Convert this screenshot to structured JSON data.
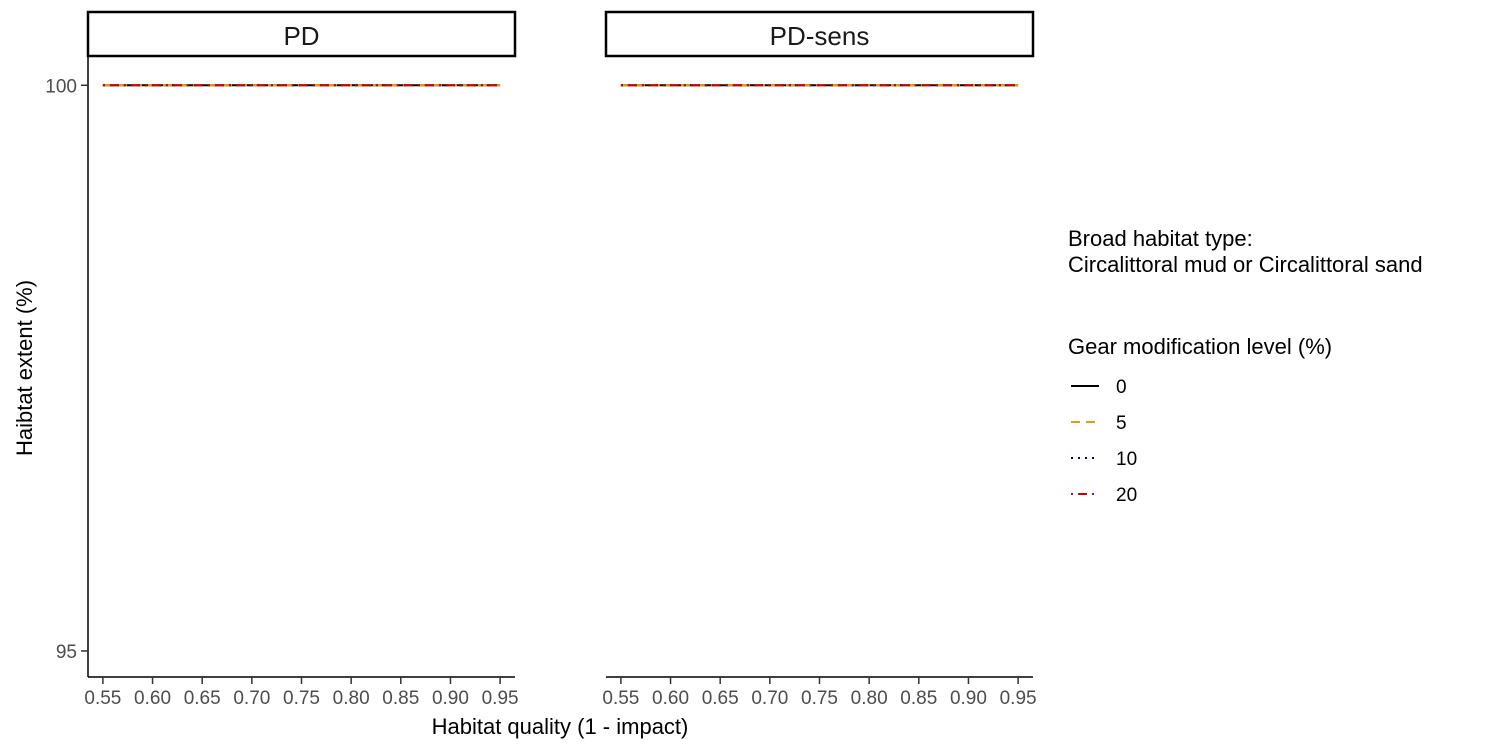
{
  "chart_data": {
    "type": "line",
    "facet_labels": [
      "PD",
      "PD-sens"
    ],
    "xlabel": "Habitat quality (1 - impact)",
    "ylabel": "Haibtat extent (%)",
    "x_ticks": [
      "0.55",
      "0.60",
      "0.65",
      "0.70",
      "0.75",
      "0.80",
      "0.85",
      "0.90",
      "0.95"
    ],
    "y_ticks": [
      "100",
      "95"
    ],
    "xlim": [
      0.535,
      0.965
    ],
    "ylim": [
      94.77,
      100.25
    ],
    "legend": {
      "placement": "right",
      "habitat_title": "Broad habitat type:",
      "habitat_value": "Circalittoral mud or Circalittoral sand",
      "title": "Gear modification level (%)"
    },
    "series": [
      {
        "name": "0",
        "color": "#000000",
        "dash": "solid"
      },
      {
        "name": "5",
        "color": "#E69F00",
        "dash": "dashed"
      },
      {
        "name": "10",
        "color": "#000080",
        "dash": "dotted"
      },
      {
        "name": "20",
        "color": "#D00000",
        "dash": "dotdash"
      }
    ],
    "facets": [
      {
        "name": "PD",
        "x": [
          0.55,
          0.6,
          0.65,
          0.7,
          0.75,
          0.8,
          0.85,
          0.9,
          0.95
        ],
        "values": {
          "0": [
            100,
            100,
            100,
            100,
            100,
            100,
            100,
            100,
            100
          ],
          "5": [
            100,
            100,
            100,
            100,
            100,
            100,
            100,
            100,
            100
          ],
          "10": [
            100,
            100,
            100,
            100,
            100,
            100,
            100,
            100,
            100
          ],
          "20": [
            100,
            100,
            100,
            100,
            100,
            100,
            100,
            100,
            100
          ]
        }
      },
      {
        "name": "PD-sens",
        "x": [
          0.55,
          0.6,
          0.65,
          0.7,
          0.75,
          0.8,
          0.85,
          0.9,
          0.95
        ],
        "values": {
          "0": [
            100,
            100,
            100,
            100,
            100,
            100,
            100,
            100,
            100
          ],
          "5": [
            100,
            100,
            100,
            100,
            100,
            100,
            100,
            100,
            100
          ],
          "10": [
            100,
            100,
            100,
            100,
            100,
            100,
            100,
            100,
            100
          ],
          "20": [
            100,
            100,
            100,
            100,
            100,
            100,
            100,
            100,
            100
          ]
        }
      }
    ]
  }
}
